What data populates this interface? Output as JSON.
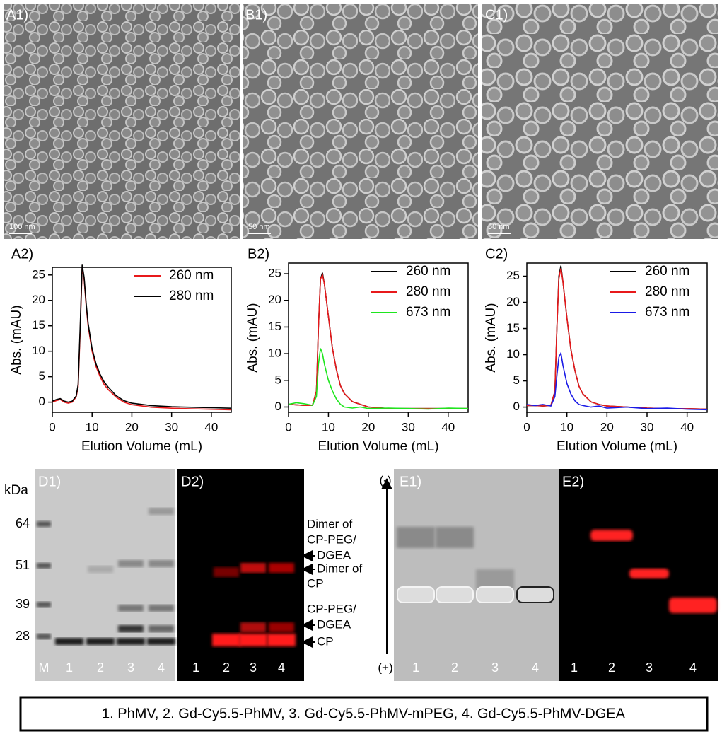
{
  "chart_data": [
    {
      "type": "line",
      "panel_label": "A2)",
      "xlabel": "Elution Volume (mL)",
      "ylabel": "Abs. (mAU)",
      "x": [
        0,
        1,
        2,
        3,
        4,
        5,
        6,
        6.5,
        7,
        7.5,
        8,
        8.5,
        9,
        10,
        11,
        12,
        13,
        14,
        16,
        18,
        20,
        25,
        30,
        35,
        40,
        45
      ],
      "series": [
        {
          "name": "260 nm",
          "color": "#e8191b",
          "values": [
            0,
            0.3,
            0.5,
            0,
            -0.2,
            0,
            1,
            3,
            14,
            26.5,
            24,
            19,
            15,
            10,
            7,
            5,
            3.5,
            2.5,
            1,
            0,
            -0.5,
            -1,
            -1.2,
            -1.3,
            -1.4,
            -1.5
          ]
        },
        {
          "name": "280 nm",
          "color": "#000000",
          "values": [
            0.2,
            0.5,
            0.7,
            0.2,
            0,
            0.2,
            1.2,
            3.5,
            15,
            27,
            24.5,
            19.5,
            15.5,
            10.5,
            7.5,
            5.5,
            4,
            3,
            1.3,
            0.3,
            -0.2,
            -0.7,
            -0.9,
            -1,
            -1.1,
            -1.2
          ]
        }
      ],
      "xlim": [
        0,
        45
      ],
      "xticks": [
        0,
        10,
        20,
        30,
        40
      ],
      "ylim": [
        -2,
        26.5
      ],
      "yticks": [
        0,
        5,
        10,
        15,
        20,
        25
      ]
    },
    {
      "type": "line",
      "panel_label": "B2)",
      "xlabel": "Elution Volume (mL)",
      "ylabel": "Abs. (mAU)",
      "x": [
        0,
        2,
        4,
        6,
        7,
        7.5,
        8,
        8.5,
        9,
        10,
        11,
        12,
        13,
        14,
        16,
        18,
        20,
        25,
        30,
        35,
        40,
        45
      ],
      "series": [
        {
          "name": "260 nm",
          "color": "#000000",
          "values": [
            0.5,
            0.4,
            0.3,
            0.3,
            3,
            15,
            24,
            25.2,
            23,
            17,
            11,
            7,
            4,
            2.5,
            1,
            0.5,
            0,
            -0.3,
            -0.3,
            -0.3,
            -0.3,
            -0.3
          ]
        },
        {
          "name": "280 nm",
          "color": "#e8191b",
          "values": [
            0.5,
            0.4,
            0.3,
            0.3,
            3,
            15,
            24,
            24.8,
            23,
            17,
            11,
            7,
            4,
            2.5,
            1,
            0.5,
            0,
            -0.3,
            -0.3,
            -0.3,
            -0.3,
            -0.3
          ]
        },
        {
          "name": "673 nm",
          "color": "#1ee61e",
          "values": [
            0.5,
            0.8,
            0.6,
            0.3,
            2,
            8,
            11,
            10,
            8,
            5,
            3,
            1.5,
            0.5,
            0,
            -0.2,
            0,
            -0.3,
            -0.2,
            -0.3,
            -0.4,
            -0.2,
            -0.3
          ]
        }
      ],
      "xlim": [
        0,
        45
      ],
      "xticks": [
        0,
        10,
        20,
        30,
        40
      ],
      "ylim": [
        -1,
        27
      ],
      "yticks": [
        0,
        5,
        10,
        15,
        20,
        25
      ]
    },
    {
      "type": "line",
      "panel_label": "C2)",
      "xlabel": "Elution Volume (mL)",
      "ylabel": "Abs. (mAU)",
      "x": [
        0,
        2,
        4,
        6,
        7,
        7.5,
        8,
        8.5,
        9,
        10,
        11,
        12,
        13,
        14,
        16,
        18,
        20,
        25,
        30,
        35,
        40,
        45
      ],
      "series": [
        {
          "name": "260 nm",
          "color": "#000000",
          "values": [
            0.3,
            0.3,
            0.2,
            0.3,
            3,
            15,
            25,
            27,
            24,
            17,
            11,
            7,
            4,
            2.5,
            1,
            0.5,
            0.2,
            0,
            -0.2,
            -0.3,
            -0.3,
            -0.4
          ]
        },
        {
          "name": "280 nm",
          "color": "#e8191b",
          "values": [
            0.3,
            0.3,
            0.2,
            0.3,
            3,
            15,
            24.5,
            26.5,
            24,
            17,
            11,
            7,
            4,
            2.5,
            1,
            0.5,
            0.2,
            0,
            -0.2,
            -0.3,
            -0.3,
            -0.4
          ]
        },
        {
          "name": "673 nm",
          "color": "#1a1ae6",
          "values": [
            0.5,
            0.3,
            0.5,
            0.2,
            2,
            6,
            9.5,
            10.3,
            8,
            4.5,
            2.5,
            1.2,
            0.5,
            0.3,
            0,
            0.2,
            -0.2,
            0,
            -0.3,
            -0.2,
            -0.4,
            -0.5
          ]
        }
      ],
      "xlim": [
        0,
        45
      ],
      "xticks": [
        0,
        10,
        20,
        30,
        40
      ],
      "ylim": [
        -1,
        27.5
      ],
      "yticks": [
        0,
        5,
        10,
        15,
        20,
        25
      ]
    }
  ],
  "tem": [
    {
      "label": "A1)",
      "scale": "100 nm"
    },
    {
      "label": "B1)",
      "scale": "50 nm"
    },
    {
      "label": "C1)",
      "scale": "50 nm"
    }
  ],
  "gels": {
    "unit": "kDa",
    "markers": [
      64,
      51,
      39,
      28
    ],
    "d1": {
      "label": "D1)",
      "lanes": [
        "M",
        "1",
        "2",
        "3",
        "4"
      ]
    },
    "d2": {
      "label": "D2)",
      "lanes": [
        "1",
        "2",
        "3",
        "4"
      ]
    },
    "annotations": [
      [
        "Dimer of",
        "CP-PEG/",
        "DGEA"
      ],
      [
        "Dimer of",
        "CP"
      ],
      [
        "CP-PEG/",
        "DGEA"
      ],
      [
        "CP"
      ]
    ],
    "e1": {
      "label": "E1)",
      "lanes": [
        "1",
        "2",
        "3",
        "4"
      ],
      "top": "(-)",
      "bottom": "(+)"
    },
    "e2": {
      "label": "E2)",
      "lanes": [
        "1",
        "2",
        "3",
        "4"
      ]
    }
  },
  "caption": "1. PhMV, 2. Gd-Cy5.5-PhMV, 3. Gd-Cy5.5-PhMV-mPEG, 4. Gd-Cy5.5-PhMV-DGEA"
}
